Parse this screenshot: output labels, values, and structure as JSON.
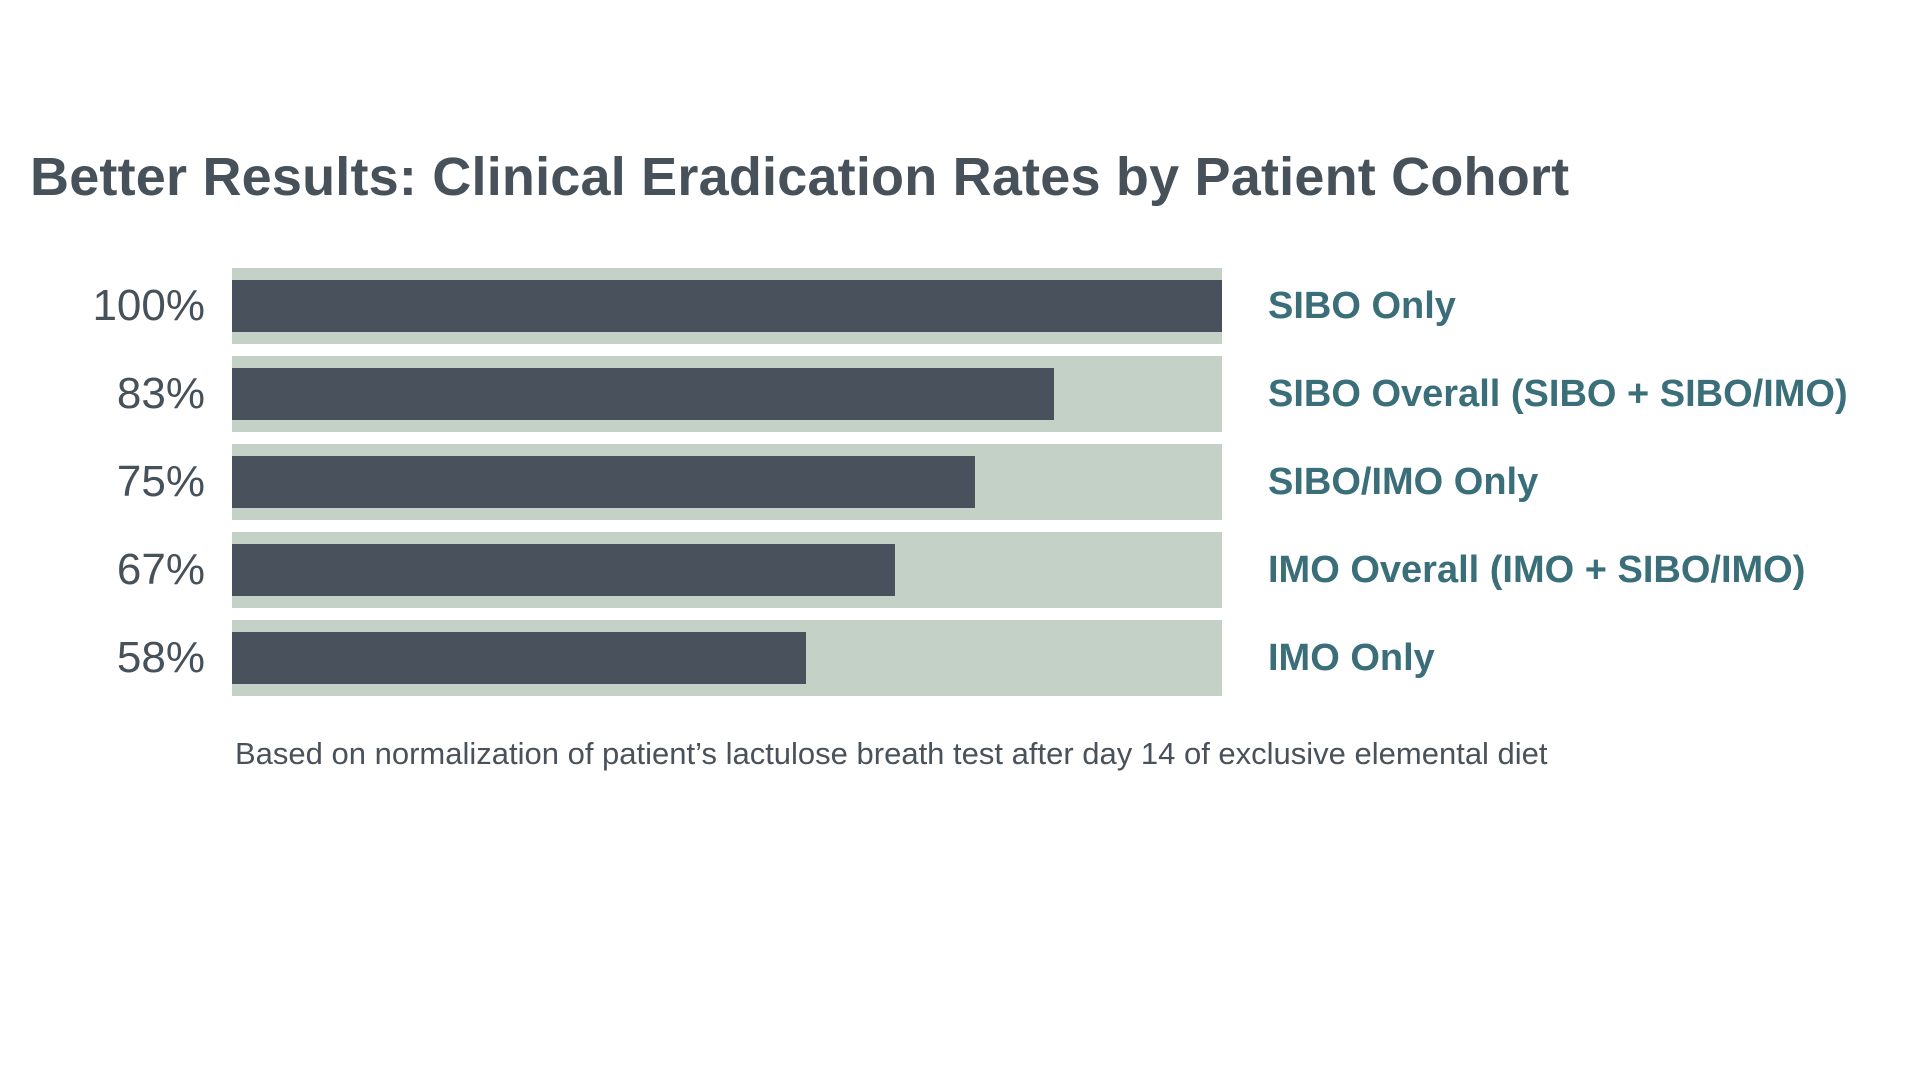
{
  "title": "Better Results: Clinical Eradication Rates by Patient Cohort",
  "footnote": "Based on normalization of patient’s lactulose breath test after day 14 of exclusive elemental diet",
  "colors": {
    "bar": "#49525C",
    "track": "#C3D1C7",
    "category": "#3A6E79",
    "title": "#47515A",
    "value": "#47515A",
    "footnote": "#49525B",
    "background": "#FFFFFF"
  },
  "chart_data": {
    "type": "bar",
    "orientation": "horizontal",
    "title": "Better Results: Clinical Eradication Rates by Patient Cohort",
    "xlabel": "",
    "ylabel": "",
    "xlim": [
      0,
      100
    ],
    "grid": false,
    "legend": false,
    "categories": [
      "SIBO Only",
      "SIBO Overall (SIBO + SIBO/IMO)",
      "SIBO/IMO Only",
      "IMO Overall (IMO + SIBO/IMO)",
      "IMO Only"
    ],
    "values": [
      100,
      83,
      75,
      67,
      58
    ],
    "value_labels": [
      "100%",
      "83%",
      "75%",
      "67%",
      "58%"
    ],
    "annotation": "Based on normalization of patient’s lactulose breath test after day 14 of exclusive elemental diet",
    "rows": [
      {
        "pct": "100%",
        "value": 100,
        "label": "SIBO Only"
      },
      {
        "pct": "83%",
        "value": 83,
        "label": "SIBO Overall (SIBO + SIBO/IMO)"
      },
      {
        "pct": "75%",
        "value": 75,
        "label": "SIBO/IMO Only"
      },
      {
        "pct": "67%",
        "value": 67,
        "label": "IMO Overall (IMO + SIBO/IMO)"
      },
      {
        "pct": "58%",
        "value": 58,
        "label": "IMO Only"
      }
    ]
  }
}
